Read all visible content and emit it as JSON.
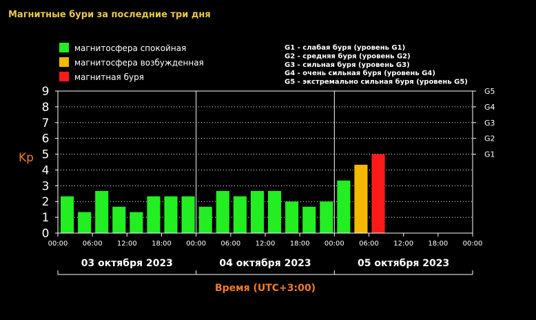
{
  "title": "Магнитные бури за последние три дня",
  "legend": [
    {
      "label": "магнитосфера спокойная",
      "color": "#22ee22"
    },
    {
      "label": "магнитосфера возбужденная",
      "color": "#f5b800"
    },
    {
      "label": "магнитная буря",
      "color": "#ff1a1a"
    }
  ],
  "storm_levels": [
    "G1 - слабая буря (уровень G1)",
    "G2 - средняя буря (уровень G2)",
    "G3 - сильная буря (уровень G3)",
    "G4 - очень сильная буря (уровень G4)",
    "G5 - экстремально сильная буря (уровень G5)"
  ],
  "chart_data": {
    "type": "bar",
    "ylabel": "Kp",
    "xlabel": "Время (UTC+3:00)",
    "ylim": [
      0,
      9
    ],
    "yticks": [
      "0",
      "1",
      "2",
      "3",
      "4",
      "5",
      "6",
      "7",
      "8",
      "9"
    ],
    "right_ticks": [
      {
        "value": 5,
        "label": "G1"
      },
      {
        "value": 6,
        "label": "G2"
      },
      {
        "value": 7,
        "label": "G3"
      },
      {
        "value": 8,
        "label": "G4"
      },
      {
        "value": 9,
        "label": "G5"
      }
    ],
    "xticks": [
      "00:00",
      "06:00",
      "12:00",
      "18:00",
      "00:00",
      "06:00",
      "12:00",
      "18:00",
      "00:00",
      "06:00",
      "12:00",
      "18:00",
      "00:00"
    ],
    "dates": [
      "03 октября 2023",
      "04 октября 2023",
      "05 октября 2023"
    ],
    "grid": true,
    "bars": [
      {
        "value": 2.33,
        "status": "calm"
      },
      {
        "value": 1.33,
        "status": "calm"
      },
      {
        "value": 2.67,
        "status": "calm"
      },
      {
        "value": 1.67,
        "status": "calm"
      },
      {
        "value": 1.33,
        "status": "calm"
      },
      {
        "value": 2.33,
        "status": "calm"
      },
      {
        "value": 2.33,
        "status": "calm"
      },
      {
        "value": 2.33,
        "status": "calm"
      },
      {
        "value": 1.67,
        "status": "calm"
      },
      {
        "value": 2.67,
        "status": "calm"
      },
      {
        "value": 2.33,
        "status": "calm"
      },
      {
        "value": 2.67,
        "status": "calm"
      },
      {
        "value": 2.67,
        "status": "calm"
      },
      {
        "value": 2.0,
        "status": "calm"
      },
      {
        "value": 1.67,
        "status": "calm"
      },
      {
        "value": 2.0,
        "status": "calm"
      },
      {
        "value": 3.33,
        "status": "calm"
      },
      {
        "value": 4.33,
        "status": "excited"
      },
      {
        "value": 5.0,
        "status": "storm"
      }
    ],
    "colors": {
      "calm": "#22ee22",
      "excited": "#f5b800",
      "storm": "#ff1a1a",
      "axis": "#ffffff",
      "grid": "#ffffff"
    }
  }
}
